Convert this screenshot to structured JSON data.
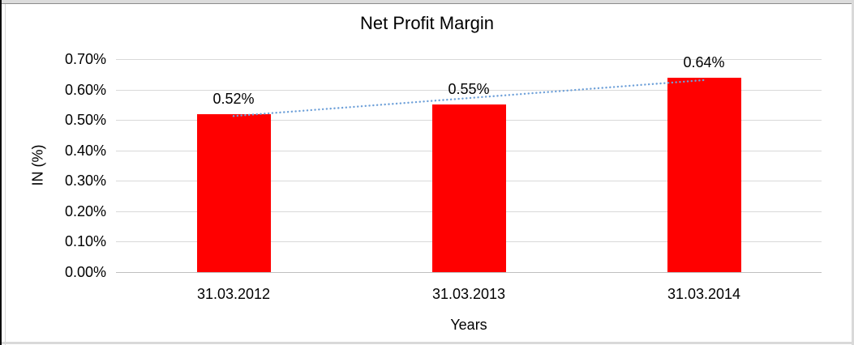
{
  "chart_data": {
    "type": "bar",
    "title": "Net Profit Margin",
    "xlabel": "Years",
    "ylabel": "IN (%)",
    "categories": [
      "31.03.2012",
      "31.03.2013",
      "31.03.2014"
    ],
    "values": [
      0.52,
      0.55,
      0.64
    ],
    "data_labels": [
      "0.52%",
      "0.55%",
      "0.64%"
    ],
    "unit": "percent",
    "ylim": [
      0,
      0.7
    ],
    "yticks": [
      {
        "value": 0.0,
        "label": "0.00%"
      },
      {
        "value": 0.1,
        "label": "0.10%"
      },
      {
        "value": 0.2,
        "label": "0.20%"
      },
      {
        "value": 0.3,
        "label": "0.30%"
      },
      {
        "value": 0.4,
        "label": "0.40%"
      },
      {
        "value": 0.5,
        "label": "0.50%"
      },
      {
        "value": 0.6,
        "label": "0.60%"
      },
      {
        "value": 0.7,
        "label": "0.70%"
      }
    ],
    "grid": true,
    "legend": "none",
    "bar_color": "#ff0000",
    "text_color": "#000000",
    "gridline_color": "#d9d9d9",
    "axis_line_color": "#bfbfbf",
    "trendline": {
      "style": "dotted",
      "color": "#6fa1d9",
      "start_value": 0.513,
      "end_value": 0.631
    }
  }
}
